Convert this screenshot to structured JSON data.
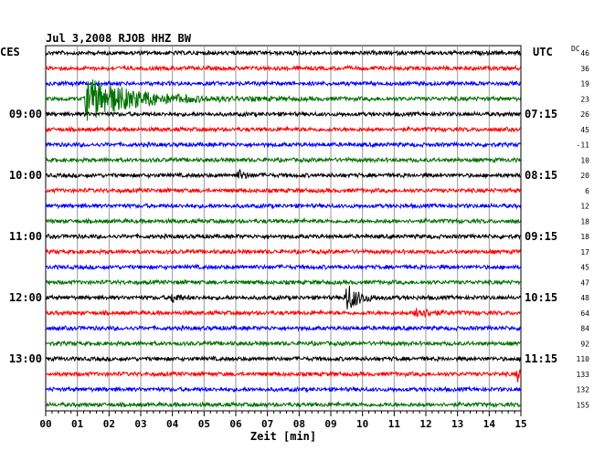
{
  "header": {
    "title": "Jul 3,2008   RJOB HHZ BW",
    "left_zone": "CES",
    "right_zone": "UTC",
    "dc_label": "DC"
  },
  "chart_data": {
    "type": "line",
    "title": "Jul 3,2008   RJOB HHZ BW",
    "xlabel": "Zeit [min]",
    "xlim": [
      0,
      15
    ],
    "x_ticks": [
      "00",
      "01",
      "02",
      "03",
      "04",
      "05",
      "06",
      "07",
      "08",
      "09",
      "10",
      "11",
      "12",
      "13",
      "14",
      "15"
    ],
    "trace_count": 24,
    "trace_colors": [
      "#000000",
      "#ff0000",
      "#0000ff",
      "#007000"
    ],
    "left_time_labels": [
      {
        "trace": 4,
        "text": "09:00"
      },
      {
        "trace": 8,
        "text": "10:00"
      },
      {
        "trace": 12,
        "text": "11:00"
      },
      {
        "trace": 16,
        "text": "12:00"
      },
      {
        "trace": 20,
        "text": "13:00"
      }
    ],
    "right_time_labels": [
      {
        "trace": 4,
        "text": "07:15"
      },
      {
        "trace": 8,
        "text": "08:15"
      },
      {
        "trace": 12,
        "text": "09:15"
      },
      {
        "trace": 16,
        "text": "10:15"
      },
      {
        "trace": 20,
        "text": "11:15"
      }
    ],
    "dc_offsets": [
      "46",
      "36",
      "19",
      "23",
      "26",
      "45",
      "-11",
      "10",
      "20",
      "6",
      "12",
      "18",
      "18",
      "17",
      "45",
      "47",
      "48",
      "64",
      "84",
      "92",
      "110",
      "133",
      "132",
      "155"
    ],
    "events": [
      {
        "trace": 3,
        "minute": 1.3,
        "amplitude": 24,
        "decay": 1.4
      },
      {
        "trace": 16,
        "minute": 9.5,
        "amplitude": 16,
        "decay": 0.35
      },
      {
        "trace": 17,
        "minute": 11.7,
        "amplitude": 7,
        "decay": 0.35
      },
      {
        "trace": 21,
        "minute": 14.9,
        "amplitude": 7,
        "decay": 0.25
      },
      {
        "trace": 16,
        "minute": 4.0,
        "amplitude": 5,
        "decay": 0.2
      },
      {
        "trace": 8,
        "minute": 6.1,
        "amplitude": 5,
        "decay": 0.2
      }
    ]
  }
}
